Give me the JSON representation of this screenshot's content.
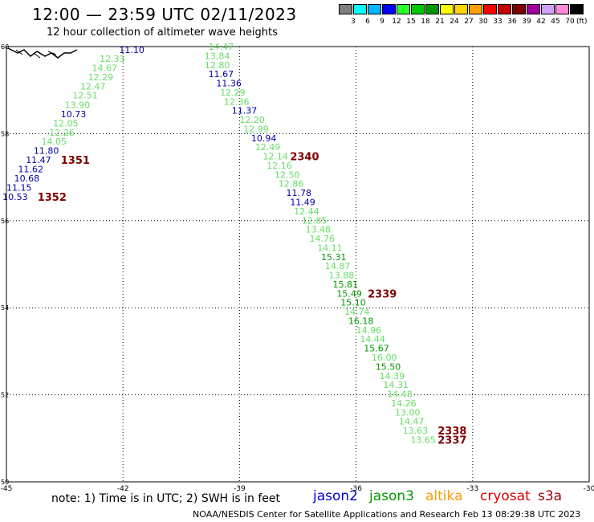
{
  "header": {
    "title": "12:00 — 23:59 UTC 02/11/2023",
    "subtitle": "12 hour collection of altimeter wave heights"
  },
  "color_scale": {
    "colors": [
      "#7f7f7f",
      "#00ffff",
      "#00b4ff",
      "#0000ff",
      "#2bff2b",
      "#00c800",
      "#009600",
      "#ffff00",
      "#ffd200",
      "#ffa000",
      "#ff0000",
      "#c80000",
      "#7f0000",
      "#a000a0",
      "#d0a0ff",
      "#ff88dd",
      "#000000"
    ],
    "labels": [
      "3",
      "6",
      "9",
      "12",
      "15",
      "18",
      "21",
      "24",
      "27",
      "30",
      "33",
      "36",
      "39",
      "42",
      "45",
      "70"
    ],
    "unit": "(ft)"
  },
  "axes": {
    "x_ticks": [
      "-45",
      "-42",
      "-39",
      "-36",
      "-33",
      "-30"
    ],
    "y_ticks": [
      "60",
      "58",
      "56",
      "54",
      "52",
      "50"
    ]
  },
  "track1": {
    "points": [
      {
        "lon": -42.1,
        "lat": 59.93,
        "v": "11.10",
        "c": "#0000aa"
      },
      {
        "lon": -42.6,
        "lat": 59.72,
        "v": "12.33",
        "c": "#66dd66"
      },
      {
        "lon": -42.8,
        "lat": 59.51,
        "v": "14.67",
        "c": "#66dd66"
      },
      {
        "lon": -42.9,
        "lat": 59.3,
        "v": "12.29",
        "c": "#66dd66"
      },
      {
        "lon": -43.1,
        "lat": 59.09,
        "v": "12.47",
        "c": "#66dd66"
      },
      {
        "lon": -43.3,
        "lat": 58.88,
        "v": "12.51",
        "c": "#66dd66"
      },
      {
        "lon": -43.5,
        "lat": 58.66,
        "v": "13.90",
        "c": "#66dd66"
      },
      {
        "lon": -43.6,
        "lat": 58.45,
        "v": "10.73",
        "c": "#0000aa"
      },
      {
        "lon": -43.8,
        "lat": 58.24,
        "v": "12.05",
        "c": "#66dd66"
      },
      {
        "lon": -43.9,
        "lat": 58.03,
        "v": "12.26",
        "c": "#66dd66"
      },
      {
        "lon": -44.1,
        "lat": 57.82,
        "v": "14.05",
        "c": "#66dd66"
      },
      {
        "lon": -44.3,
        "lat": 57.61,
        "v": "11.80",
        "c": "#0000aa"
      },
      {
        "lon": -44.5,
        "lat": 57.4,
        "v": "11.47",
        "c": "#0000aa"
      },
      {
        "lon": -44.7,
        "lat": 57.19,
        "v": "11.62",
        "c": "#0000aa"
      },
      {
        "lon": -44.8,
        "lat": 56.97,
        "v": "10.68",
        "c": "#0000aa"
      },
      {
        "lon": -45.0,
        "lat": 56.76,
        "v": "11.15",
        "c": "#0000aa"
      },
      {
        "lon": -45.1,
        "lat": 56.55,
        "v": "10.53",
        "c": "#0000aa"
      }
    ],
    "time_labels": [
      {
        "lon": -43.6,
        "lat": 57.4,
        "t": "1351"
      },
      {
        "lon": -44.2,
        "lat": 56.55,
        "t": "1352"
      }
    ]
  },
  "track2": {
    "points": [
      {
        "lon": -39.8,
        "lat": 60.0,
        "v": "14.47",
        "c": "#66dd66"
      },
      {
        "lon": -39.9,
        "lat": 59.79,
        "v": "13.84",
        "c": "#66dd66"
      },
      {
        "lon": -39.9,
        "lat": 59.58,
        "v": "12.80",
        "c": "#66dd66"
      },
      {
        "lon": -39.8,
        "lat": 59.37,
        "v": "11.67",
        "c": "#0000aa"
      },
      {
        "lon": -39.6,
        "lat": 59.16,
        "v": "11.36",
        "c": "#0000aa"
      },
      {
        "lon": -39.5,
        "lat": 58.95,
        "v": "12.29",
        "c": "#66dd66"
      },
      {
        "lon": -39.4,
        "lat": 58.74,
        "v": "12.36",
        "c": "#66dd66"
      },
      {
        "lon": -39.2,
        "lat": 58.53,
        "v": "11.37",
        "c": "#0000aa"
      },
      {
        "lon": -39.0,
        "lat": 58.32,
        "v": "12.20",
        "c": "#66dd66"
      },
      {
        "lon": -38.9,
        "lat": 58.11,
        "v": "12.99",
        "c": "#66dd66"
      },
      {
        "lon": -38.7,
        "lat": 57.9,
        "v": "10.94",
        "c": "#0000aa"
      },
      {
        "lon": -38.6,
        "lat": 57.69,
        "v": "12.49",
        "c": "#66dd66"
      },
      {
        "lon": -38.4,
        "lat": 57.48,
        "v": "12.14",
        "c": "#66dd66"
      },
      {
        "lon": -38.3,
        "lat": 57.27,
        "v": "12.16",
        "c": "#66dd66"
      },
      {
        "lon": -38.1,
        "lat": 57.06,
        "v": "12.50",
        "c": "#66dd66"
      },
      {
        "lon": -38.0,
        "lat": 56.85,
        "v": "12.86",
        "c": "#66dd66"
      },
      {
        "lon": -37.8,
        "lat": 56.64,
        "v": "11.78",
        "c": "#0000aa"
      },
      {
        "lon": -37.7,
        "lat": 56.43,
        "v": "11.49",
        "c": "#0000aa"
      },
      {
        "lon": -37.6,
        "lat": 56.22,
        "v": "12.44",
        "c": "#66dd66"
      },
      {
        "lon": -37.4,
        "lat": 56.01,
        "v": "12.85",
        "c": "#66dd66"
      },
      {
        "lon": -37.3,
        "lat": 55.8,
        "v": "13.48",
        "c": "#66dd66"
      },
      {
        "lon": -37.2,
        "lat": 55.59,
        "v": "14.76",
        "c": "#66dd66"
      },
      {
        "lon": -37.0,
        "lat": 55.38,
        "v": "14.11",
        "c": "#66dd66"
      },
      {
        "lon": -36.9,
        "lat": 55.17,
        "v": "15.31",
        "c": "#009900"
      },
      {
        "lon": -36.8,
        "lat": 54.96,
        "v": "14.87",
        "c": "#66dd66"
      },
      {
        "lon": -36.7,
        "lat": 54.75,
        "v": "13.88",
        "c": "#66dd66"
      },
      {
        "lon": -36.6,
        "lat": 54.54,
        "v": "15.81",
        "c": "#009900"
      },
      {
        "lon": -36.5,
        "lat": 54.33,
        "v": "15.49",
        "c": "#009900"
      },
      {
        "lon": -36.4,
        "lat": 54.12,
        "v": "15.10",
        "c": "#009900"
      },
      {
        "lon": -36.3,
        "lat": 53.91,
        "v": "14.74",
        "c": "#66dd66"
      },
      {
        "lon": -36.2,
        "lat": 53.7,
        "v": "16.18",
        "c": "#009900"
      },
      {
        "lon": -36.0,
        "lat": 53.49,
        "v": "14.96",
        "c": "#66dd66"
      },
      {
        "lon": -35.9,
        "lat": 53.28,
        "v": "14.44",
        "c": "#66dd66"
      },
      {
        "lon": -35.8,
        "lat": 53.07,
        "v": "15.67",
        "c": "#009900"
      },
      {
        "lon": -35.6,
        "lat": 52.86,
        "v": "16.00",
        "c": "#66dd66"
      },
      {
        "lon": -35.5,
        "lat": 52.65,
        "v": "15.50",
        "c": "#009900"
      },
      {
        "lon": -35.4,
        "lat": 52.44,
        "v": "14.39",
        "c": "#66dd66"
      },
      {
        "lon": -35.3,
        "lat": 52.23,
        "v": "14.31",
        "c": "#66dd66"
      },
      {
        "lon": -35.2,
        "lat": 52.02,
        "v": "14.48",
        "c": "#66dd66"
      },
      {
        "lon": -35.1,
        "lat": 51.81,
        "v": "14.26",
        "c": "#66dd66"
      },
      {
        "lon": -35.0,
        "lat": 51.6,
        "v": "13.00",
        "c": "#66dd66"
      },
      {
        "lon": -34.9,
        "lat": 51.39,
        "v": "14.47",
        "c": "#66dd66"
      },
      {
        "lon": -34.8,
        "lat": 51.18,
        "v": "13.63",
        "c": "#66dd66"
      },
      {
        "lon": -34.6,
        "lat": 50.97,
        "v": "13.65",
        "c": "#66dd66"
      }
    ],
    "time_labels": [
      {
        "lon": -37.7,
        "lat": 57.48,
        "t": "2340"
      },
      {
        "lon": -35.7,
        "lat": 54.33,
        "t": "2339"
      },
      {
        "lon": -33.9,
        "lat": 51.18,
        "t": "2338"
      },
      {
        "lon": -33.9,
        "lat": 50.97,
        "t": "2337"
      }
    ]
  },
  "footer": {
    "note": "note: 1) Time is in UTC; 2) SWH is in feet",
    "credit": "NOAA/NESDIS Center for Satellite Applications and Research    Feb 13 08:29:38 UTC 2023",
    "satellites": [
      {
        "name": "jason2",
        "color": "#0000cc"
      },
      {
        "name": "jason3",
        "color": "#009900"
      },
      {
        "name": "altika",
        "color": "#ff9900"
      },
      {
        "name": "cryosat",
        "color": "#dd0000"
      },
      {
        "name": "s3a",
        "color": "#990000"
      }
    ]
  }
}
